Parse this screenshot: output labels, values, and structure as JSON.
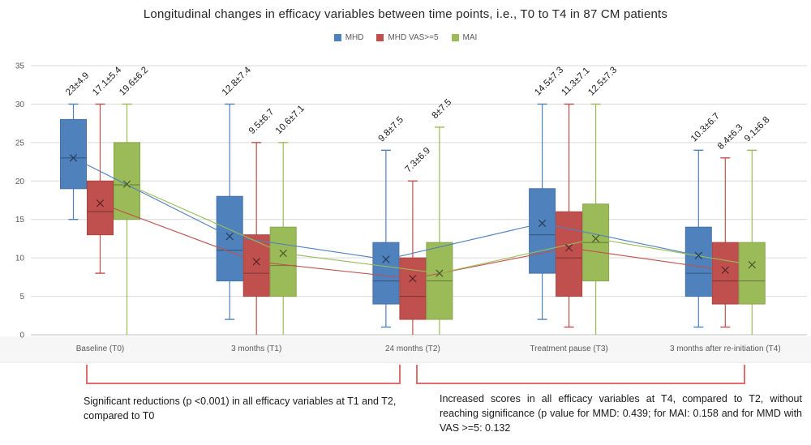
{
  "chart": {
    "title": "Longitudinal changes in efficacy variables between time points, i.e., T0 to T4 in 87 CM patients"
  },
  "chart_data": {
    "type": "boxplot",
    "title": "Longitudinal changes in efficacy variables between time points, i.e., T0 to T4 in 87 CM patients",
    "legend_position": "top",
    "grid": true,
    "categories": [
      "Baseline (T0)",
      "3 months (T1)",
      "24 months (T2)",
      "Treatment pause (T3)",
      "3 months after re-initiation (T4)"
    ],
    "y_axis": {
      "min": 0,
      "max": 35,
      "tick_step": 5,
      "ticks": [
        0,
        5,
        10,
        15,
        20,
        25,
        30,
        35
      ]
    },
    "series": [
      {
        "name": "MHD",
        "color": "#4f81bd",
        "means": [
          23,
          12.8,
          9.8,
          14.5,
          10.3
        ],
        "labels": [
          "23±4.9",
          "12.8±7.4",
          "9.8±7.5",
          "14.5±7.3",
          "10.3±6.7"
        ],
        "boxes": [
          {
            "whisker_low": 15,
            "q1": 19,
            "median": 23,
            "q3": 28,
            "whisker_high": 30
          },
          {
            "whisker_low": 2,
            "q1": 7,
            "median": 11,
            "q3": 18,
            "whisker_high": 30
          },
          {
            "whisker_low": 1,
            "q1": 4,
            "median": 7,
            "q3": 12,
            "whisker_high": 24
          },
          {
            "whisker_low": 2,
            "q1": 8,
            "median": 13,
            "q3": 19,
            "whisker_high": 30
          },
          {
            "whisker_low": 1,
            "q1": 5,
            "median": 8,
            "q3": 14,
            "whisker_high": 24
          }
        ]
      },
      {
        "name": "MHD VAS>=5",
        "color": "#c0504d",
        "means": [
          17.1,
          9.5,
          7.3,
          11.3,
          8.4
        ],
        "labels": [
          "17.1±5.4",
          "9.5±6.7",
          "7.3±6.9",
          "11.3±7.1",
          "8.4±6.3"
        ],
        "boxes": [
          {
            "whisker_low": 8,
            "q1": 13,
            "median": 16,
            "q3": 20,
            "whisker_high": 30
          },
          {
            "whisker_low": 0,
            "q1": 5,
            "median": 8,
            "q3": 13,
            "whisker_high": 25
          },
          {
            "whisker_low": 0,
            "q1": 2,
            "median": 5,
            "q3": 10,
            "whisker_high": 20
          },
          {
            "whisker_low": 1,
            "q1": 5,
            "median": 10,
            "q3": 16,
            "whisker_high": 30
          },
          {
            "whisker_low": 1,
            "q1": 4,
            "median": 7,
            "q3": 12,
            "whisker_high": 23
          }
        ]
      },
      {
        "name": "MAI",
        "color": "#9bbb59",
        "means": [
          19.6,
          10.6,
          8,
          12.5,
          9.1
        ],
        "labels": [
          "19.6±6.2",
          "10.6±7.1",
          "8±7.5",
          "12.5±7.3",
          "9.1±6.8"
        ],
        "boxes": [
          {
            "whisker_low": 0,
            "q1": 15,
            "median": 19.5,
            "q3": 25,
            "whisker_high": 30
          },
          {
            "whisker_low": 0,
            "q1": 5,
            "median": 9,
            "q3": 14,
            "whisker_high": 25
          },
          {
            "whisker_low": 0,
            "q1": 2,
            "median": 7,
            "q3": 12,
            "whisker_high": 27
          },
          {
            "whisker_low": 0,
            "q1": 7,
            "median": 12,
            "q3": 17,
            "whisker_high": 30
          },
          {
            "whisker_low": 0,
            "q1": 4,
            "median": 7,
            "q3": 12,
            "whisker_high": 24
          }
        ]
      }
    ]
  },
  "annotations": {
    "bracket_color": "#e06c6c",
    "left_text": "Significant reductions (p <0.001) in all efficacy variables at T1 and T2, compared to T0",
    "right_text": "Increased scores in all efficacy variables at T4, compared to T2, without reaching significance (p value for MMD: 0.439; for MAI: 0.158 and for MMD with VAS >=5: 0.132"
  }
}
